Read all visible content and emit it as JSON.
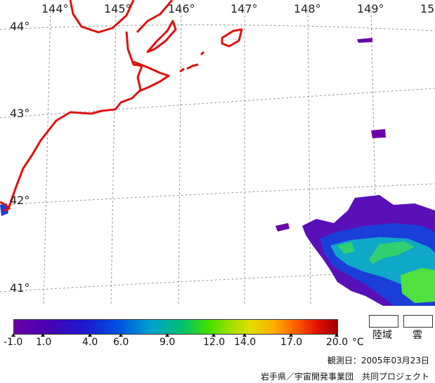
{
  "map": {
    "longitude_labels": [
      "144°",
      "145°",
      "146°",
      "147°",
      "148°",
      "149°",
      "15"
    ],
    "latitude_labels": [
      "44°",
      "43°",
      "42°",
      "41°"
    ],
    "colors": {
      "coastline": "#e01010",
      "grid": "#999999",
      "background": "#ffffff"
    }
  },
  "colorbar": {
    "ticks": [
      "-1.0",
      "1.0",
      "4.0",
      "6.0",
      "9.0",
      "12.0",
      "14.0",
      "17.0",
      "20.0"
    ],
    "unit": "°C",
    "legend": [
      {
        "label": "陸域",
        "color": "#ffffff"
      },
      {
        "label": "雲",
        "color": "#ffffff"
      }
    ]
  },
  "footer": {
    "observation_date": "観測日：2005年03月23日",
    "credit": "岩手県／宇宙開発事業団　共同プロジェクト"
  }
}
